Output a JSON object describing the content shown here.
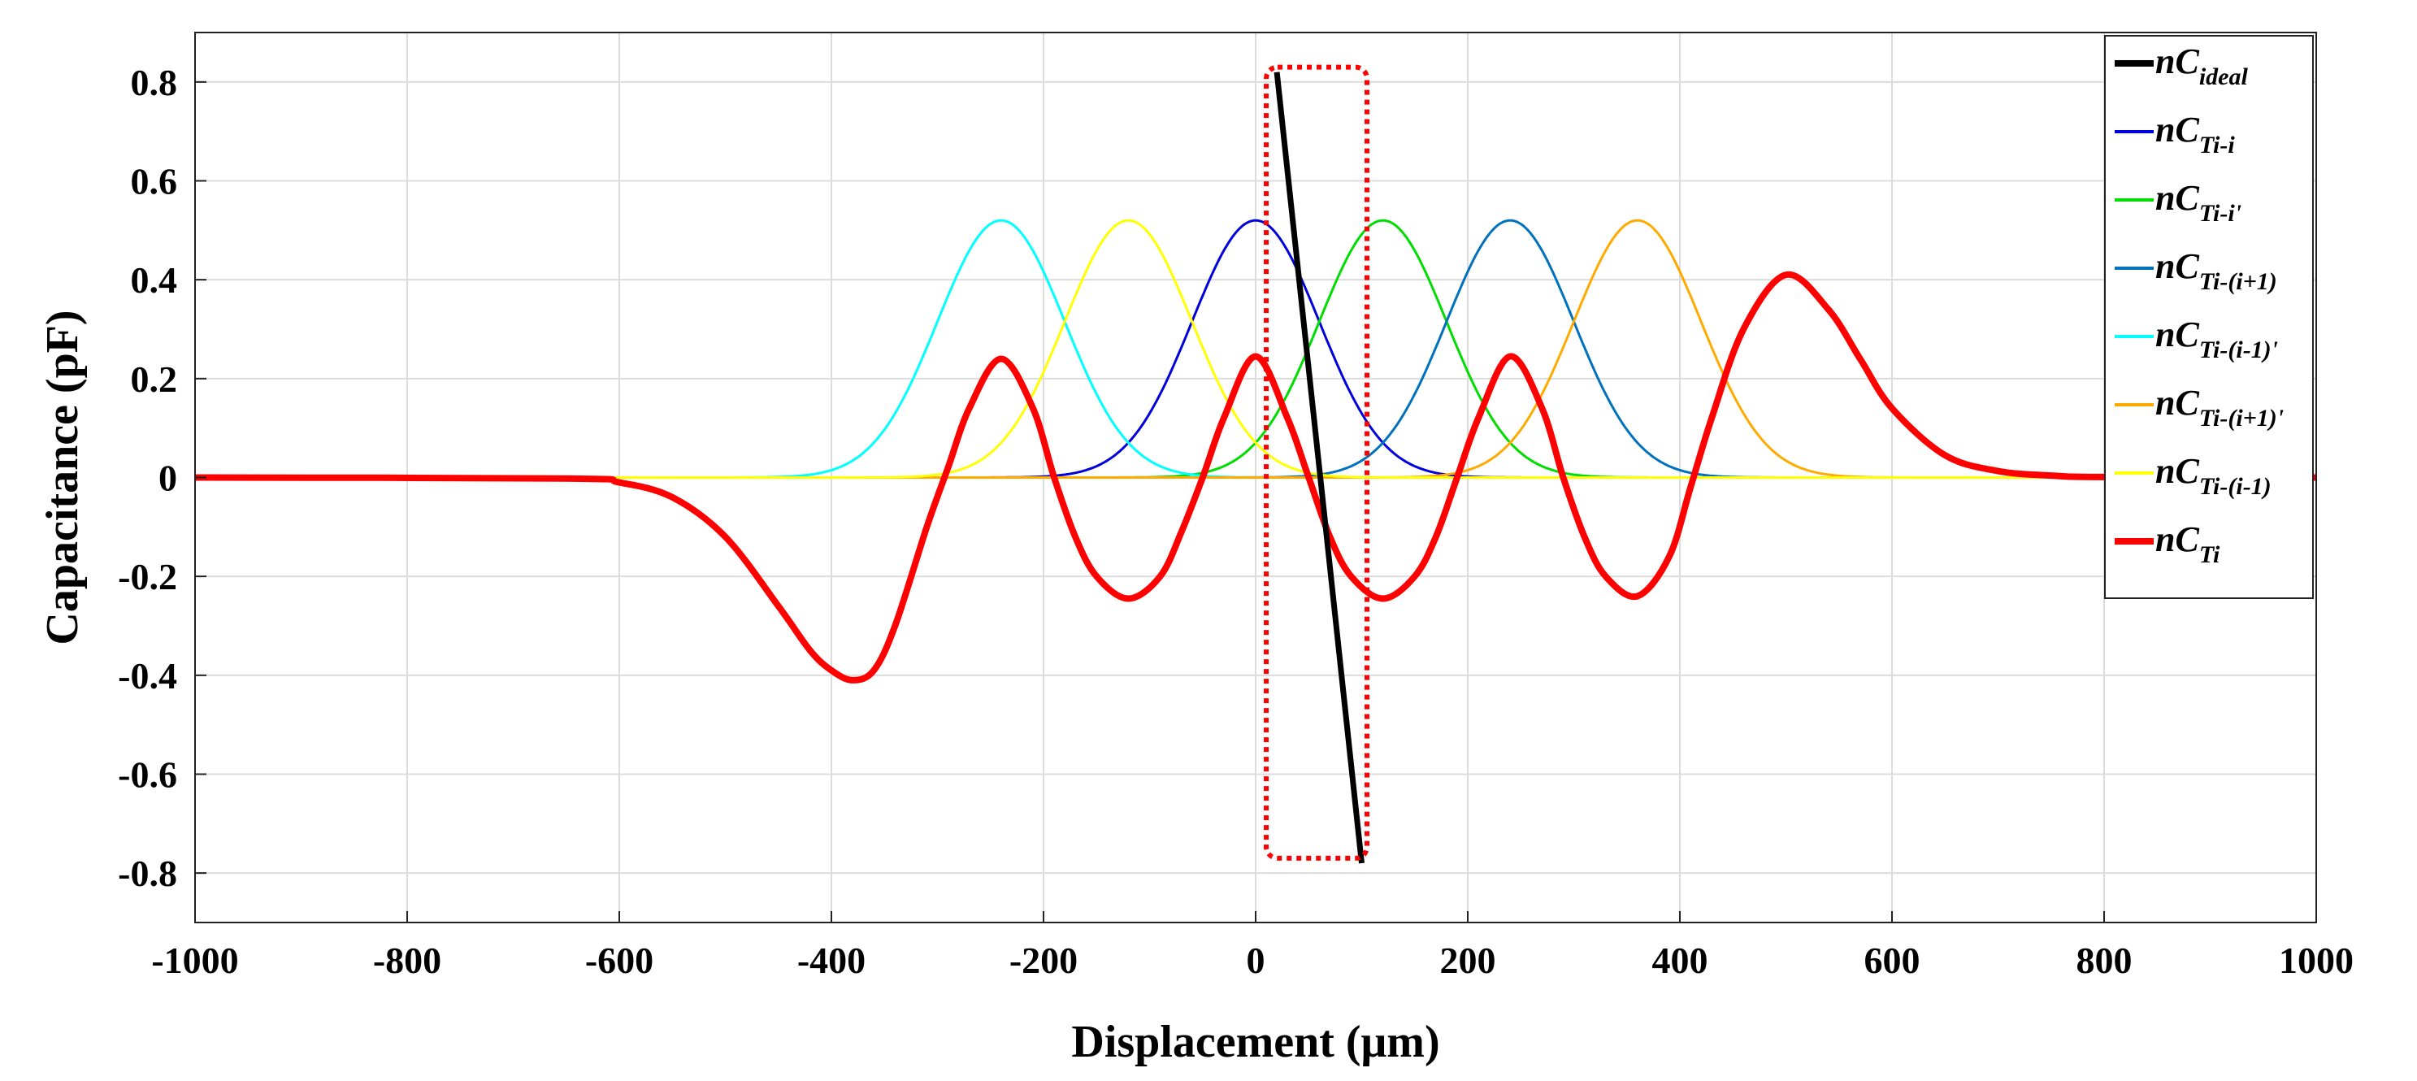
{
  "chart_data": {
    "type": "line",
    "title": "",
    "xlabel": "Displacement (μm)",
    "ylabel": "Capacitance (pF)",
    "xlim": [
      -1000,
      1000
    ],
    "ylim": [
      -0.9,
      0.9
    ],
    "xticks": [
      -1000,
      -800,
      -600,
      -400,
      -200,
      0,
      200,
      400,
      600,
      800,
      1000
    ],
    "xtick_labels": [
      "-1000",
      "-800",
      "-600",
      "-400",
      "-200",
      "0",
      "200",
      "400",
      "600",
      "800",
      "1000"
    ],
    "yticks": [
      -0.8,
      -0.6,
      -0.4,
      -0.2,
      0,
      0.2,
      0.4,
      0.6,
      0.8
    ],
    "ytick_labels": [
      "-0.8",
      "-0.6",
      "-0.4",
      "-0.2",
      "0",
      "0.2",
      "0.4",
      "0.6",
      "0.8"
    ],
    "grid": true,
    "legend_position": "top-right",
    "series": [
      {
        "name": "nC_ideal",
        "label_main": "nC",
        "label_sub": "ideal",
        "color": "#000000",
        "kind": "line",
        "x": [
          20,
          100
        ],
        "y": [
          0.82,
          -0.78
        ]
      },
      {
        "name": "nC_Ti-i",
        "label_main": "nC",
        "label_sub": "Ti-i",
        "color": "#0000dd",
        "kind": "gaussian",
        "x": [
          -1000,
          -400,
          -300,
          -200,
          -150,
          -100,
          -50,
          0,
          50,
          100,
          150,
          200,
          300,
          400,
          1000
        ],
        "y": [
          0,
          0.0,
          0.002,
          0.016,
          0.05,
          0.147,
          0.33,
          0.52,
          0.33,
          0.147,
          0.05,
          0.016,
          0.002,
          0.0,
          0
        ]
      },
      {
        "name": "nC_Ti-i'",
        "label_main": "nC",
        "label_sub": "Ti-i'",
        "color": "#00dd00",
        "kind": "gaussian",
        "x": [
          -1000,
          -280,
          -180,
          -80,
          -30,
          20,
          70,
          120,
          170,
          220,
          270,
          320,
          420,
          520,
          1000
        ],
        "y": [
          0,
          0.0,
          0.002,
          0.016,
          0.05,
          0.147,
          0.33,
          0.52,
          0.33,
          0.147,
          0.05,
          0.016,
          0.002,
          0.0,
          0
        ]
      },
      {
        "name": "nC_Ti-(i+1)",
        "label_main": "nC",
        "label_sub": "Ti-(i+1)",
        "color": "#0072bd",
        "kind": "gaussian",
        "x": [
          -1000,
          -160,
          -60,
          40,
          90,
          140,
          190,
          240,
          290,
          340,
          390,
          440,
          540,
          640,
          1000
        ],
        "y": [
          0,
          0.0,
          0.002,
          0.016,
          0.05,
          0.147,
          0.33,
          0.52,
          0.33,
          0.147,
          0.05,
          0.016,
          0.002,
          0.0,
          0
        ]
      },
      {
        "name": "nC_Ti-(i-1)'",
        "label_main": "nC",
        "label_sub": "Ti-(i-1)'",
        "color": "#00ffff",
        "kind": "gaussian",
        "x": [
          -1000,
          -640,
          -540,
          -440,
          -390,
          -340,
          -290,
          -240,
          -190,
          -140,
          -90,
          -40,
          60,
          160,
          1000
        ],
        "y": [
          0,
          0.0,
          0.002,
          0.016,
          0.05,
          0.147,
          0.33,
          0.52,
          0.33,
          0.147,
          0.05,
          0.016,
          0.002,
          0.0,
          0
        ]
      },
      {
        "name": "nC_Ti-(i+1)'",
        "label_main": "nC",
        "label_sub": "Ti-(i+1)'",
        "color": "#ffaa00",
        "kind": "gaussian",
        "x": [
          -1000,
          -40,
          60,
          160,
          210,
          260,
          310,
          360,
          410,
          460,
          510,
          560,
          660,
          760,
          1000
        ],
        "y": [
          0,
          0.0,
          0.002,
          0.016,
          0.05,
          0.147,
          0.33,
          0.52,
          0.33,
          0.147,
          0.05,
          0.016,
          0.002,
          0.0,
          0
        ]
      },
      {
        "name": "nC_Ti-(i-1)",
        "label_main": "nC",
        "label_sub": "Ti-(i-1)",
        "color": "#ffff00",
        "kind": "gaussian",
        "x": [
          -1000,
          -520,
          -420,
          -320,
          -270,
          -220,
          -170,
          -120,
          -70,
          -20,
          30,
          80,
          180,
          280,
          1000
        ],
        "y": [
          0,
          0.0,
          0.002,
          0.016,
          0.05,
          0.147,
          0.33,
          0.52,
          0.33,
          0.147,
          0.05,
          0.016,
          0.002,
          0.0,
          0
        ]
      },
      {
        "name": "nC_Ti",
        "label_main": "nC",
        "label_sub": "Ti",
        "color": "#ff0000",
        "kind": "line",
        "x": [
          -1000,
          -650,
          -600,
          -550,
          -500,
          -450,
          -420,
          -400,
          -380,
          -360,
          -340,
          -310,
          -290,
          -270,
          -240,
          -210,
          -190,
          -170,
          -150,
          -120,
          -90,
          -70,
          -50,
          -30,
          0,
          30,
          50,
          70,
          90,
          120,
          150,
          170,
          190,
          210,
          240,
          270,
          290,
          310,
          330,
          360,
          390,
          410,
          430,
          460,
          500,
          540,
          570,
          600,
          650,
          700,
          750,
          800,
          1000
        ],
        "y": [
          0,
          -0.002,
          -0.01,
          -0.04,
          -0.12,
          -0.26,
          -0.35,
          -0.39,
          -0.41,
          -0.39,
          -0.3,
          -0.1,
          0.02,
          0.14,
          0.24,
          0.14,
          0.0,
          -0.12,
          -0.2,
          -0.245,
          -0.2,
          -0.11,
          0.0,
          0.12,
          0.245,
          0.12,
          0.0,
          -0.12,
          -0.2,
          -0.245,
          -0.2,
          -0.12,
          0.0,
          0.12,
          0.245,
          0.14,
          0.0,
          -0.12,
          -0.2,
          -0.24,
          -0.16,
          -0.02,
          0.12,
          0.3,
          0.41,
          0.34,
          0.24,
          0.14,
          0.045,
          0.013,
          0.004,
          0.001,
          0
        ]
      }
    ],
    "annotations": [
      {
        "type": "dotted-rectangle",
        "color": "#ff0000",
        "x_range": [
          10,
          105
        ],
        "y_range": [
          -0.77,
          0.83
        ]
      }
    ]
  }
}
